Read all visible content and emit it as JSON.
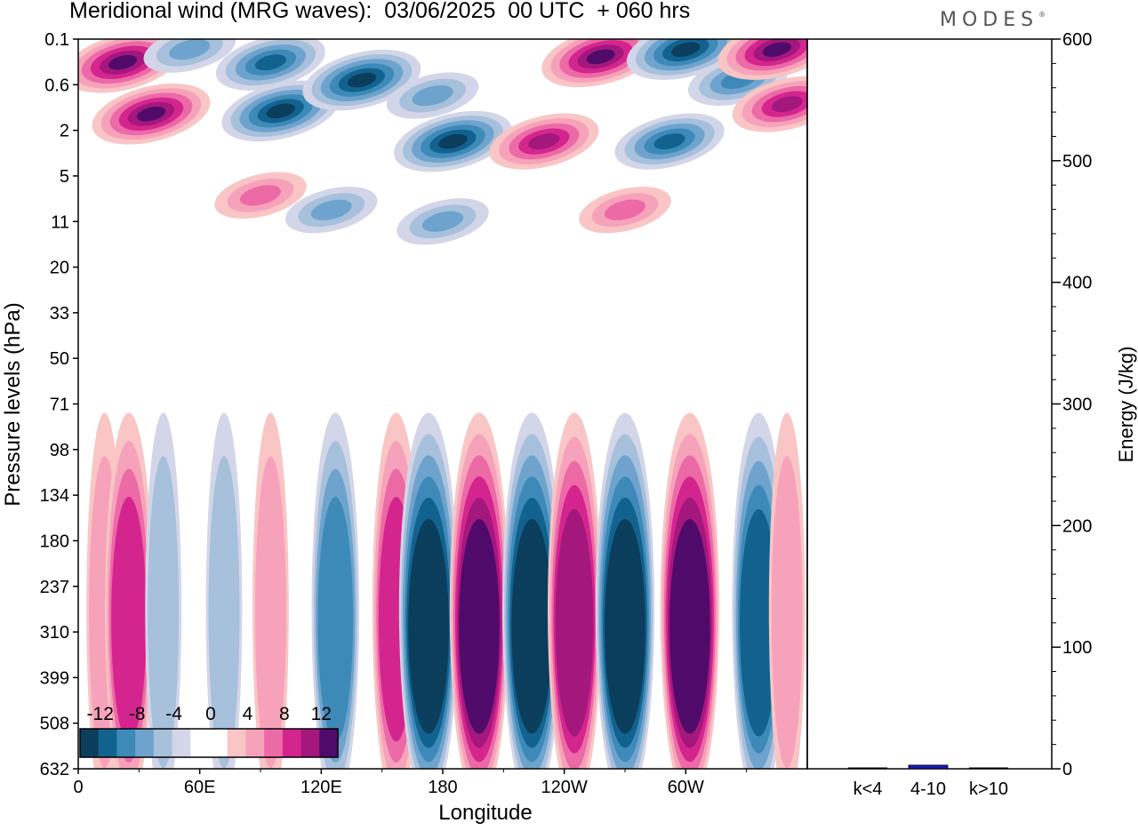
{
  "header": {
    "title": "Meridional wind (MRG waves):  03/06/2025  00 UTC  + 060 hrs",
    "brand": "MODES"
  },
  "chart_data": [
    {
      "type": "heatmap",
      "title": "Meridional wind (MRG waves):  03/06/2025  00 UTC  + 060 hrs",
      "xlabel": "Longitude",
      "ylabel": "Pressure levels (hPa)",
      "x_ticks": [
        "0",
        "60E",
        "120E",
        "180",
        "120W",
        "60W"
      ],
      "x_tick_degrees": [
        0,
        60,
        120,
        180,
        240,
        300
      ],
      "xlim": [
        0,
        360
      ],
      "y_ticks": [
        "0.1",
        "0.6",
        "2",
        "5",
        "11",
        "20",
        "33",
        "50",
        "71",
        "98",
        "134",
        "180",
        "237",
        "310",
        "399",
        "508",
        "632"
      ],
      "y_inverted": true,
      "colorbar": {
        "labels": [
          "-12",
          "-8",
          "-4",
          "0",
          "4",
          "8",
          "12"
        ],
        "colors": [
          "#0b3d5c",
          "#12628f",
          "#3d8ab9",
          "#6ea3cd",
          "#a7c0dc",
          "#d3d6e8",
          "#ffffff",
          "#ffffff",
          "#f9c5c5",
          "#f7a2bb",
          "#ec6aa6",
          "#d4258f",
          "#a4177d",
          "#4f0a6a"
        ]
      },
      "upper_features": [
        {
          "lon": 22,
          "level": "0.25",
          "value": 14
        },
        {
          "lon": 55,
          "level": "0.15",
          "value": -6
        },
        {
          "lon": 95,
          "level": "0.25",
          "value": -9
        },
        {
          "lon": 100,
          "level": "1.2",
          "value": -12
        },
        {
          "lon": 140,
          "level": "0.5",
          "value": -13
        },
        {
          "lon": 185,
          "level": "2.5",
          "value": -12
        },
        {
          "lon": 175,
          "level": "0.8",
          "value": -6
        },
        {
          "lon": 36,
          "level": "1.3",
          "value": 14
        },
        {
          "lon": 230,
          "level": "2.5",
          "value": 10
        },
        {
          "lon": 258,
          "level": "0.2",
          "value": 14
        },
        {
          "lon": 300,
          "level": "0.15",
          "value": -13
        },
        {
          "lon": 292,
          "level": "2.5",
          "value": -9
        },
        {
          "lon": 326,
          "level": "0.5",
          "value": -8
        },
        {
          "lon": 345,
          "level": "0.15",
          "value": 12
        },
        {
          "lon": 350,
          "level": "1",
          "value": 10
        },
        {
          "lon": 90,
          "level": "7",
          "value": 6
        },
        {
          "lon": 125,
          "level": "9",
          "value": -5
        },
        {
          "lon": 180,
          "level": "11",
          "value": -6
        },
        {
          "lon": 270,
          "level": "9",
          "value": 5
        }
      ],
      "lower_columns": [
        {
          "lon": 13,
          "value": 4
        },
        {
          "lon": 25,
          "value": 7
        },
        {
          "lon": 42,
          "value": -3
        },
        {
          "lon": 72,
          "value": -3
        },
        {
          "lon": 95,
          "value": 4
        },
        {
          "lon": 127,
          "value": -7
        },
        {
          "lon": 157,
          "value": 8
        },
        {
          "lon": 173,
          "value": -13
        },
        {
          "lon": 198,
          "value": 16
        },
        {
          "lon": 224,
          "value": -12
        },
        {
          "lon": 245,
          "value": 9
        },
        {
          "lon": 270,
          "value": -11
        },
        {
          "lon": 302,
          "value": 11
        },
        {
          "lon": 336,
          "value": -10
        },
        {
          "lon": 350,
          "value": 4
        }
      ]
    },
    {
      "type": "bar",
      "ylabel": "Energy (J/kg)",
      "categories": [
        "k<4",
        "4-10",
        "k>10"
      ],
      "values": [
        0,
        3,
        0
      ],
      "ylim": [
        0,
        600
      ],
      "y_ticks": [
        "0",
        "100",
        "200",
        "300",
        "400",
        "500",
        "600"
      ],
      "bar_color": "#1a1ab8"
    }
  ]
}
